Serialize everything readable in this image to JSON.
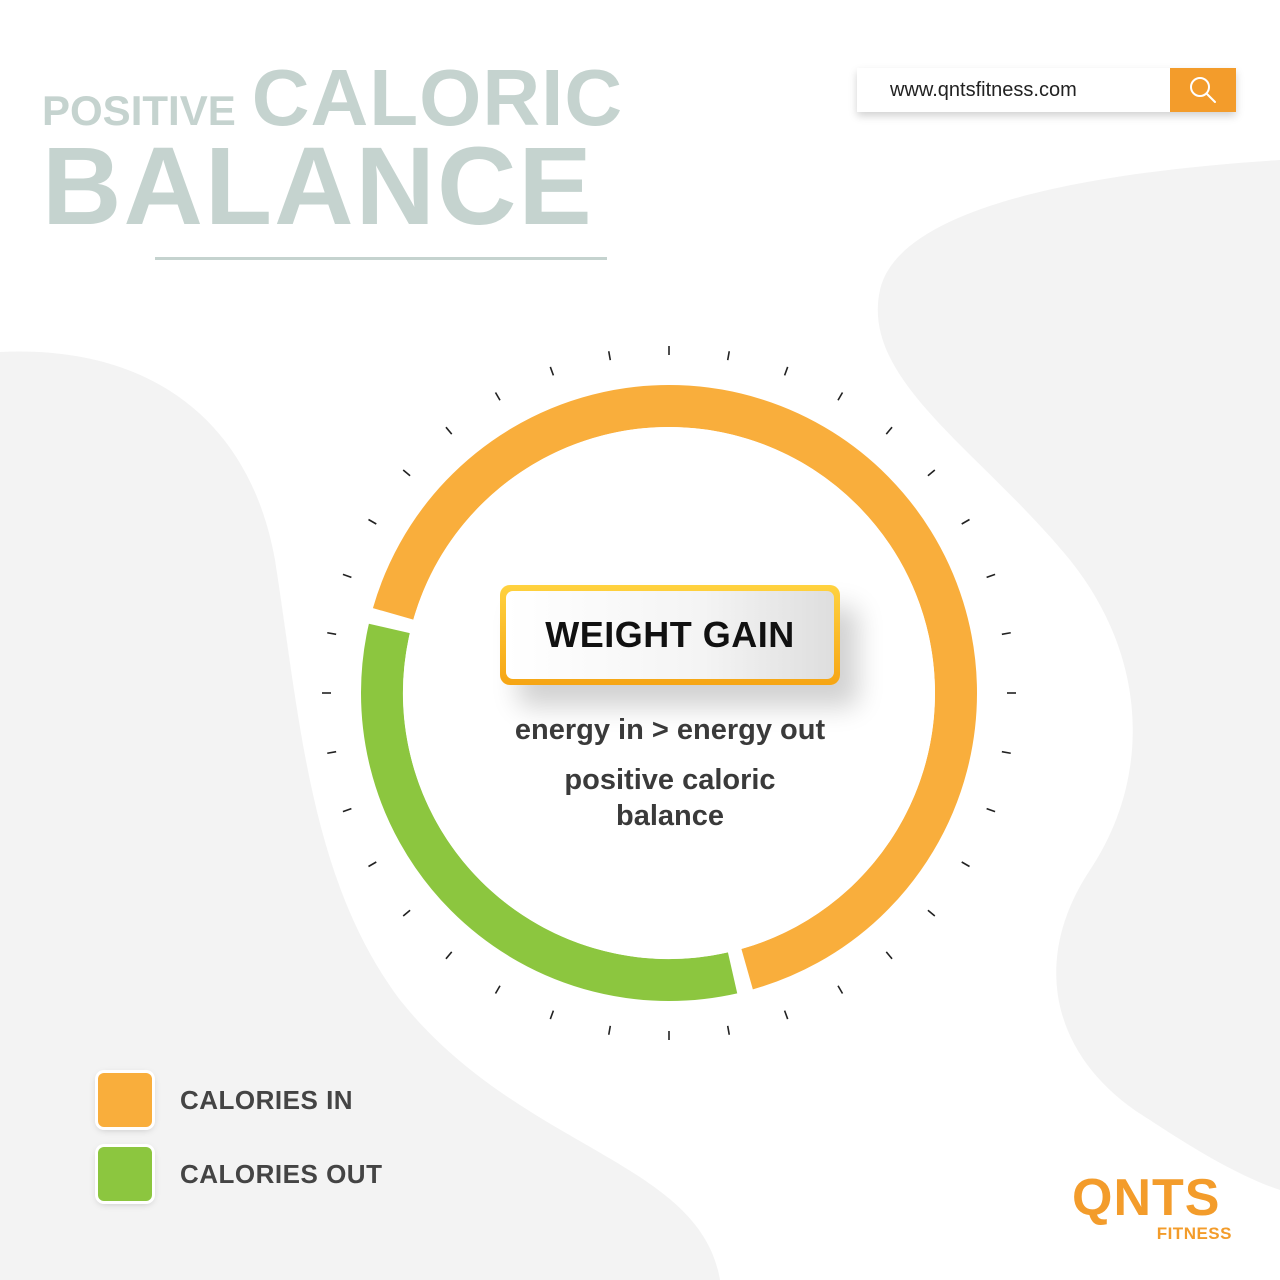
{
  "title": {
    "line1_small": "POSITIVE",
    "line1_large": "CALORIC",
    "line2": "BALANCE"
  },
  "search": {
    "value": "www.qntsfitness.com",
    "icon": "search-icon"
  },
  "donut": {
    "segments": [
      {
        "name": "calories-in",
        "share": 0.67,
        "color": "#f9ae3c"
      },
      {
        "name": "calories-out",
        "share": 0.33,
        "color": "#8cc63f"
      }
    ]
  },
  "center": {
    "badge": "WEIGHT GAIN",
    "line1": "energy in > energy out",
    "line2a": "positive caloric",
    "line2b": "balance"
  },
  "legend": [
    {
      "label": "CALORIES IN",
      "color": "#f9ae3c"
    },
    {
      "label": "CALORIES OUT",
      "color": "#8cc63f"
    }
  ],
  "logo": {
    "main": "QNTS",
    "sub": "FITNESS"
  }
}
